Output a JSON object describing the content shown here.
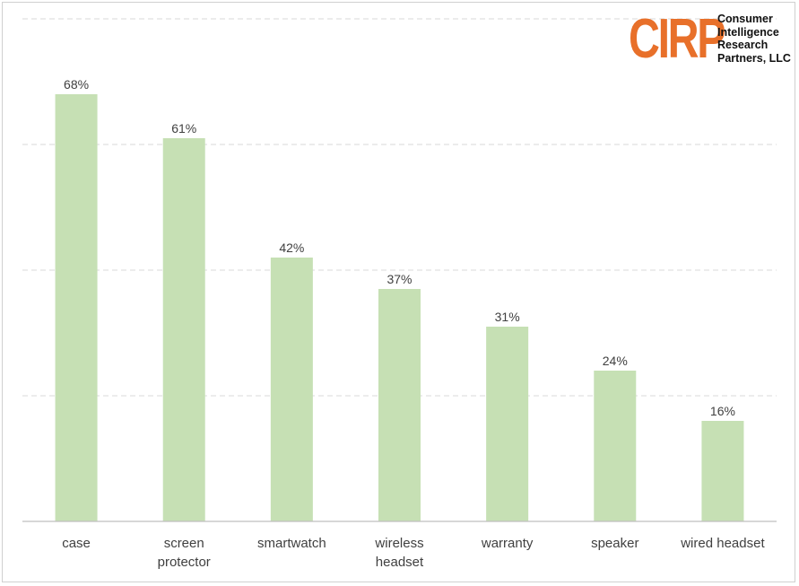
{
  "logo": {
    "mark": "CIRP",
    "lines": [
      "Consumer",
      "Intelligence",
      "Research",
      "Partners, LLC"
    ],
    "color": "#e8702a"
  },
  "colors": {
    "bar": "#c6e0b4",
    "grid": "#d9d9d9",
    "axis": "#bfbfbf",
    "text": "#404040"
  },
  "chart_data": {
    "type": "bar",
    "categories": [
      [
        "case"
      ],
      [
        "screen",
        "protector"
      ],
      [
        "smartwatch"
      ],
      [
        "wireless",
        "headset"
      ],
      [
        "warranty"
      ],
      [
        "speaker"
      ],
      [
        "wired headset"
      ]
    ],
    "values": [
      68,
      61,
      42,
      37,
      31,
      24,
      16
    ],
    "data_labels": [
      "68%",
      "61%",
      "42%",
      "37%",
      "31%",
      "24%",
      "16%"
    ],
    "title": "",
    "xlabel": "",
    "ylabel": "",
    "ylim": [
      0,
      80
    ],
    "grid": true,
    "gridline_values": [
      20,
      40,
      60,
      80
    ],
    "legend": "none"
  }
}
